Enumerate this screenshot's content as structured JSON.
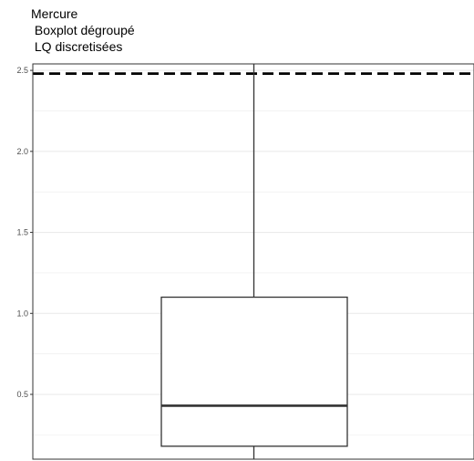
{
  "chart_data": {
    "type": "boxplot",
    "title_lines": [
      "Mercure",
      " Boxplot dégroupé",
      " LQ discretisées"
    ],
    "xlabel": "",
    "ylabel": "",
    "ylim": [
      0.1,
      2.54
    ],
    "y_ticks": [
      0.5,
      1.0,
      1.5,
      2.0,
      2.5
    ],
    "y_tick_labels": [
      "0.5",
      "1.0",
      "1.5",
      "2.0",
      "2.5"
    ],
    "grid": true,
    "box": {
      "whisker_low": 0.1,
      "q1": 0.18,
      "median": 0.43,
      "q3": 1.1,
      "whisker_high": 2.54
    },
    "reference_line": {
      "value": 2.48,
      "style": "dashed",
      "color": "#000000"
    },
    "colors": {
      "panel_border": "#333333",
      "grid": "#ebebeb",
      "box_fill": "#ffffff",
      "box_stroke": "#333333"
    }
  }
}
